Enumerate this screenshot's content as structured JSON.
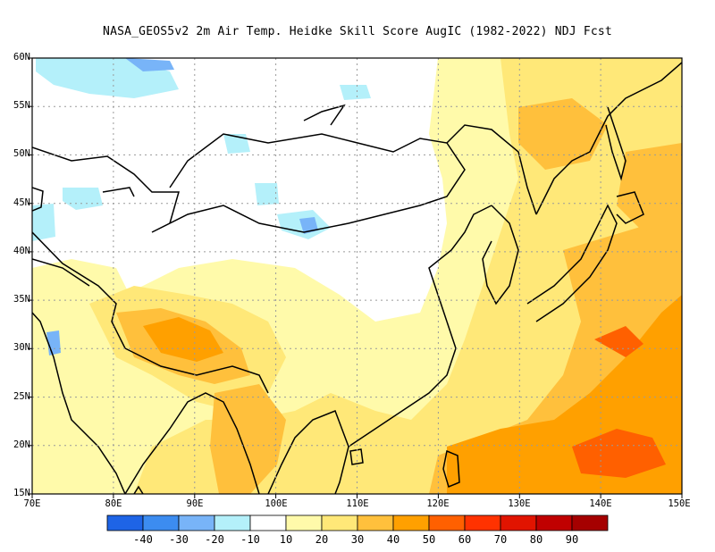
{
  "title": "NASA_GEOS5v2  2m Air Temp. Heidke Skill Score AugIC (1982-2022) NDJ Fcst",
  "map": {
    "lon_range": [
      70,
      150
    ],
    "lat_range": [
      15,
      60
    ],
    "lat_labels": [
      "60N",
      "55N",
      "50N",
      "45N",
      "40N",
      "35N",
      "30N",
      "25N",
      "20N",
      "15N"
    ],
    "lon_labels": [
      "70E",
      "80E",
      "90E",
      "100E",
      "110E",
      "120E",
      "130E",
      "140E",
      "150E"
    ],
    "gridlines": "dotted"
  },
  "colorbar": {
    "colors": [
      "#1e64e6",
      "#3c8cf0",
      "#78b4f8",
      "#b4f0fa",
      "#ffffff",
      "#fffaaa",
      "#ffe878",
      "#ffc03c",
      "#ffa000",
      "#ff6000",
      "#ff3200",
      "#e11400",
      "#c00000",
      "#a50000"
    ],
    "labels": [
      "-40",
      "-30",
      "-20",
      "-10",
      "10",
      "20",
      "30",
      "40",
      "50",
      "60",
      "70",
      "80",
      "90"
    ]
  },
  "regions": [
    {
      "name": "blue-siberia-northwest",
      "level": "-10"
    },
    {
      "name": "blue-siberia-north",
      "level": "-20"
    },
    {
      "name": "blue-mongolia",
      "level": "-10"
    },
    {
      "name": "blue-central-asia",
      "level": "-10"
    },
    {
      "name": "blue-kazakhstan-west",
      "level": "-10"
    },
    {
      "name": "blue-afghanistan",
      "level": "-20"
    },
    {
      "name": "skill-tibet",
      "level": "30"
    },
    {
      "name": "skill-south-china-sea",
      "level": "40"
    },
    {
      "name": "skill-west-pacific",
      "level": "50"
    },
    {
      "name": "skill-east-siberia",
      "level": "30"
    }
  ]
}
